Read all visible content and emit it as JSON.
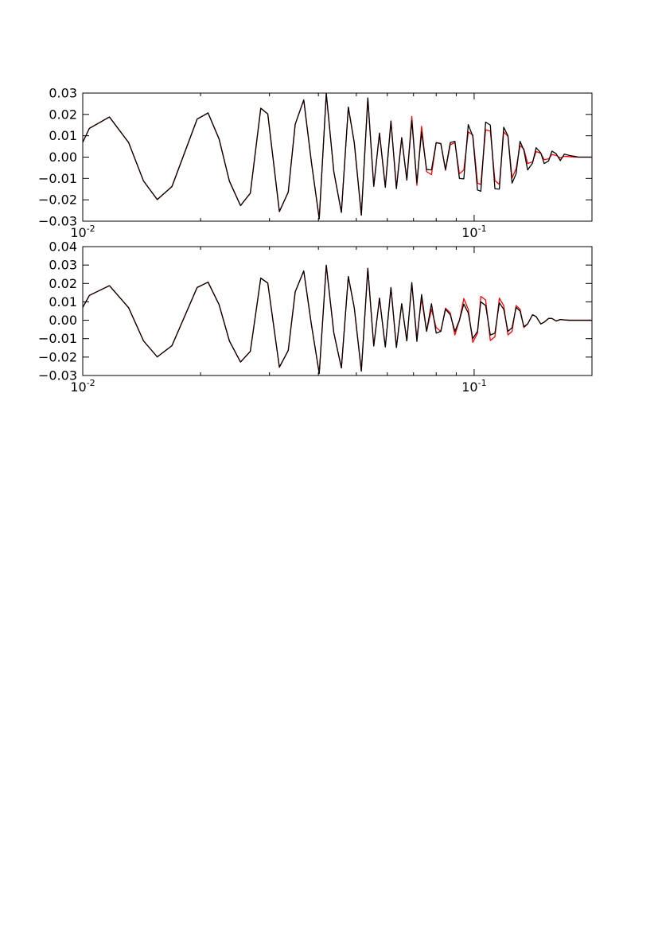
{
  "chart_data": [
    {
      "type": "line",
      "x_scale": "log",
      "xlim": [
        0.01,
        0.2
      ],
      "ylim": [
        -0.03,
        0.03
      ],
      "grid": false,
      "x_ticks": [
        {
          "value": 0.01,
          "base": "10",
          "exp": "-2"
        },
        {
          "value": 0.1,
          "base": "10",
          "exp": "-1"
        }
      ],
      "y_ticks": [
        {
          "value": -0.03,
          "label": "−0.03"
        },
        {
          "value": -0.02,
          "label": "−0.02"
        },
        {
          "value": -0.01,
          "label": "−0.01"
        },
        {
          "value": 0.0,
          "label": "0.00"
        },
        {
          "value": 0.01,
          "label": "0.01"
        },
        {
          "value": 0.02,
          "label": "0.02"
        },
        {
          "value": 0.03,
          "label": "0.03"
        }
      ],
      "series": [
        {
          "color": "#ff0000",
          "x": [
            0.01,
            0.0104,
            0.0117,
            0.0131,
            0.0143,
            0.0155,
            0.0169,
            0.0196,
            0.0209,
            0.0223,
            0.0237,
            0.0253,
            0.0268,
            0.0285,
            0.0297,
            0.0318,
            0.0335,
            0.0349,
            0.0367,
            0.0384,
            0.0402,
            0.0419,
            0.0438,
            0.0458,
            0.0477,
            0.0494,
            0.0515,
            0.0535,
            0.0554,
            0.0573,
            0.0593,
            0.0613,
            0.0633,
            0.0653,
            0.0673,
            0.0693,
            0.0714,
            0.0734,
            0.0756,
            0.0778,
            0.08,
            0.0822,
            0.0845,
            0.0869,
            0.0893,
            0.0917,
            0.0941,
            0.0966,
            0.0992,
            0.102,
            0.104,
            0.107,
            0.11,
            0.113,
            0.116,
            0.119,
            0.122,
            0.125,
            0.128,
            0.131,
            0.134,
            0.137,
            0.141,
            0.144,
            0.148,
            0.151,
            0.155,
            0.158,
            0.162,
            0.166,
            0.17,
            0.175,
            0.18,
            0.185,
            0.19,
            0.2
          ],
          "y": [
            0.007,
            0.0135,
            0.0188,
            0.0068,
            -0.0112,
            -0.0199,
            -0.0138,
            0.0178,
            0.0207,
            0.0085,
            -0.0113,
            -0.0227,
            -0.0169,
            0.0229,
            0.0202,
            -0.0255,
            -0.0164,
            0.0154,
            0.0268,
            -0.0025,
            -0.0289,
            0.0298,
            -0.0068,
            -0.0259,
            0.0234,
            0.0068,
            -0.0272,
            0.0277,
            -0.0137,
            0.0112,
            -0.0136,
            0.017,
            -0.0142,
            0.0092,
            -0.0105,
            0.019,
            -0.0132,
            0.0144,
            -0.0068,
            -0.0082,
            0.0068,
            0.0062,
            -0.0062,
            0.0058,
            0.0068,
            -0.0078,
            -0.006,
            0.0118,
            0.0104,
            -0.0122,
            -0.0128,
            0.0128,
            0.0122,
            -0.011,
            -0.0128,
            0.0118,
            0.0098,
            -0.0098,
            -0.0054,
            0.0054,
            0.0038,
            -0.003,
            -0.0022,
            0.0026,
            0.0018,
            -0.0012,
            -0.0008,
            0.0012,
            0.0008,
            -0.0004,
            0.0004,
            0.0002,
            0.0,
            0.0,
            0.0,
            0.0
          ]
        },
        {
          "color": "#000000",
          "x": [
            0.01,
            0.0104,
            0.0117,
            0.0131,
            0.0143,
            0.0155,
            0.0169,
            0.0196,
            0.0209,
            0.0223,
            0.0237,
            0.0253,
            0.0268,
            0.0285,
            0.0297,
            0.0318,
            0.0335,
            0.0349,
            0.0367,
            0.0384,
            0.0402,
            0.0419,
            0.0438,
            0.0458,
            0.0477,
            0.0494,
            0.0515,
            0.0535,
            0.0554,
            0.0573,
            0.0593,
            0.0613,
            0.0633,
            0.0653,
            0.0673,
            0.0693,
            0.0714,
            0.0734,
            0.0756,
            0.0778,
            0.08,
            0.0822,
            0.0845,
            0.0869,
            0.0893,
            0.0917,
            0.0941,
            0.0966,
            0.0992,
            0.102,
            0.104,
            0.107,
            0.11,
            0.113,
            0.116,
            0.119,
            0.122,
            0.125,
            0.128,
            0.131,
            0.134,
            0.137,
            0.141,
            0.144,
            0.148,
            0.151,
            0.155,
            0.158,
            0.162,
            0.166,
            0.17,
            0.175,
            0.18,
            0.185,
            0.19,
            0.2
          ],
          "y": [
            0.007,
            0.0135,
            0.0188,
            0.0068,
            -0.0112,
            -0.0199,
            -0.0138,
            0.0178,
            0.0207,
            0.0085,
            -0.0113,
            -0.0227,
            -0.0169,
            0.0229,
            0.0202,
            -0.0255,
            -0.0164,
            0.0154,
            0.0268,
            -0.0025,
            -0.0289,
            0.0298,
            -0.0068,
            -0.0259,
            0.0234,
            0.0068,
            -0.0272,
            0.0277,
            -0.0137,
            0.0112,
            -0.0142,
            0.0168,
            -0.0148,
            0.009,
            -0.0108,
            0.0172,
            -0.012,
            0.0118,
            -0.0058,
            -0.006,
            0.0068,
            0.0064,
            -0.0058,
            0.0068,
            0.0074,
            -0.01,
            -0.0102,
            0.0152,
            0.0098,
            -0.0154,
            -0.016,
            0.0164,
            0.015,
            -0.0148,
            -0.015,
            0.014,
            0.01,
            -0.0122,
            -0.0078,
            0.0074,
            0.0032,
            -0.006,
            -0.0028,
            0.0044,
            0.002,
            -0.003,
            -0.0018,
            0.0028,
            0.0016,
            -0.0016,
            0.0014,
            0.0008,
            0.0004,
            0.0,
            0.0,
            0.0
          ]
        }
      ]
    },
    {
      "type": "line",
      "x_scale": "log",
      "xlim": [
        0.01,
        0.2
      ],
      "ylim": [
        -0.03,
        0.04
      ],
      "grid": false,
      "x_ticks": [
        {
          "value": 0.01,
          "base": "10",
          "exp": "-2"
        },
        {
          "value": 0.1,
          "base": "10",
          "exp": "-1"
        }
      ],
      "y_ticks": [
        {
          "value": -0.03,
          "label": "−0.03"
        },
        {
          "value": -0.02,
          "label": "−0.02"
        },
        {
          "value": -0.01,
          "label": "−0.01"
        },
        {
          "value": 0.0,
          "label": "0.00"
        },
        {
          "value": 0.01,
          "label": "0.01"
        },
        {
          "value": 0.02,
          "label": "0.02"
        },
        {
          "value": 0.03,
          "label": "0.03"
        },
        {
          "value": 0.04,
          "label": "0.04"
        }
      ],
      "series": [
        {
          "color": "#ff0000",
          "x": [
            0.01,
            0.0104,
            0.0117,
            0.0131,
            0.0143,
            0.0155,
            0.0169,
            0.0196,
            0.0209,
            0.0223,
            0.0237,
            0.0253,
            0.0268,
            0.0285,
            0.0297,
            0.0318,
            0.0335,
            0.0349,
            0.0367,
            0.0384,
            0.0402,
            0.0419,
            0.0438,
            0.0458,
            0.0477,
            0.0494,
            0.0515,
            0.0535,
            0.0554,
            0.0573,
            0.0593,
            0.0613,
            0.0633,
            0.0653,
            0.0673,
            0.0693,
            0.0714,
            0.0734,
            0.0756,
            0.0778,
            0.08,
            0.0822,
            0.0845,
            0.0869,
            0.0893,
            0.0917,
            0.0941,
            0.0966,
            0.0992,
            0.102,
            0.104,
            0.107,
            0.11,
            0.113,
            0.116,
            0.119,
            0.122,
            0.125,
            0.128,
            0.131,
            0.134,
            0.137,
            0.141,
            0.144,
            0.148,
            0.151,
            0.155,
            0.158,
            0.162,
            0.166,
            0.17,
            0.175,
            0.18,
            0.185,
            0.19,
            0.2
          ],
          "y": [
            0.007,
            0.0135,
            0.0188,
            0.0068,
            -0.0112,
            -0.0199,
            -0.0138,
            0.0178,
            0.0207,
            0.0085,
            -0.0113,
            -0.0227,
            -0.0169,
            0.0229,
            0.0202,
            -0.0255,
            -0.0164,
            0.0154,
            0.0268,
            -0.0025,
            -0.0289,
            0.0299,
            -0.0068,
            -0.0259,
            0.0238,
            0.0068,
            -0.0276,
            0.0282,
            -0.014,
            0.012,
            -0.0145,
            0.0178,
            -0.0148,
            0.009,
            -0.0112,
            0.0198,
            -0.01,
            0.012,
            -0.006,
            0.006,
            -0.004,
            -0.006,
            0.0066,
            0.004,
            -0.008,
            0.0,
            0.0118,
            0.006,
            -0.012,
            -0.007,
            0.013,
            0.011,
            -0.011,
            -0.009,
            0.012,
            0.008,
            -0.008,
            -0.006,
            0.008,
            0.006,
            -0.004,
            -0.002,
            0.003,
            0.002,
            -0.002,
            -0.001,
            0.001,
            0.001,
            -0.0004,
            0.0004,
            0.0002,
            0.0,
            0.0,
            0.0,
            0.0,
            0.0
          ]
        },
        {
          "color": "#000000",
          "x": [
            0.01,
            0.0104,
            0.0117,
            0.0131,
            0.0143,
            0.0155,
            0.0169,
            0.0196,
            0.0209,
            0.0223,
            0.0237,
            0.0253,
            0.0268,
            0.0285,
            0.0297,
            0.0318,
            0.0335,
            0.0349,
            0.0367,
            0.0384,
            0.0402,
            0.0419,
            0.0438,
            0.0458,
            0.0477,
            0.0494,
            0.0515,
            0.0535,
            0.0554,
            0.0573,
            0.0593,
            0.0613,
            0.0633,
            0.0653,
            0.0673,
            0.0693,
            0.0714,
            0.0734,
            0.0756,
            0.0778,
            0.08,
            0.0822,
            0.0845,
            0.0869,
            0.0893,
            0.0917,
            0.0941,
            0.0966,
            0.0992,
            0.102,
            0.104,
            0.107,
            0.11,
            0.113,
            0.116,
            0.119,
            0.122,
            0.125,
            0.128,
            0.131,
            0.134,
            0.137,
            0.141,
            0.144,
            0.148,
            0.151,
            0.155,
            0.158,
            0.162,
            0.166,
            0.17,
            0.175,
            0.18,
            0.185,
            0.19,
            0.2
          ],
          "y": [
            0.007,
            0.0135,
            0.0188,
            0.0068,
            -0.0112,
            -0.0199,
            -0.0138,
            0.0178,
            0.0207,
            0.0085,
            -0.0113,
            -0.0227,
            -0.0169,
            0.0229,
            0.0202,
            -0.0255,
            -0.0164,
            0.0154,
            0.0268,
            -0.0025,
            -0.0289,
            0.0299,
            -0.0068,
            -0.0259,
            0.0238,
            0.0068,
            -0.0276,
            0.0282,
            -0.014,
            0.012,
            -0.0145,
            0.0178,
            -0.0148,
            0.009,
            -0.0112,
            0.0205,
            -0.0115,
            0.014,
            -0.006,
            0.009,
            -0.007,
            -0.006,
            0.006,
            0.003,
            -0.006,
            0.0,
            0.0088,
            0.004,
            -0.01,
            -0.006,
            0.01,
            0.008,
            -0.008,
            -0.007,
            0.0095,
            0.006,
            -0.006,
            -0.004,
            0.007,
            0.005,
            -0.0035,
            -0.002,
            0.003,
            0.002,
            -0.002,
            -0.001,
            0.001,
            0.001,
            -0.0004,
            0.0004,
            0.0002,
            0.0,
            0.0,
            0.0,
            0.0,
            0.0
          ]
        }
      ]
    }
  ]
}
